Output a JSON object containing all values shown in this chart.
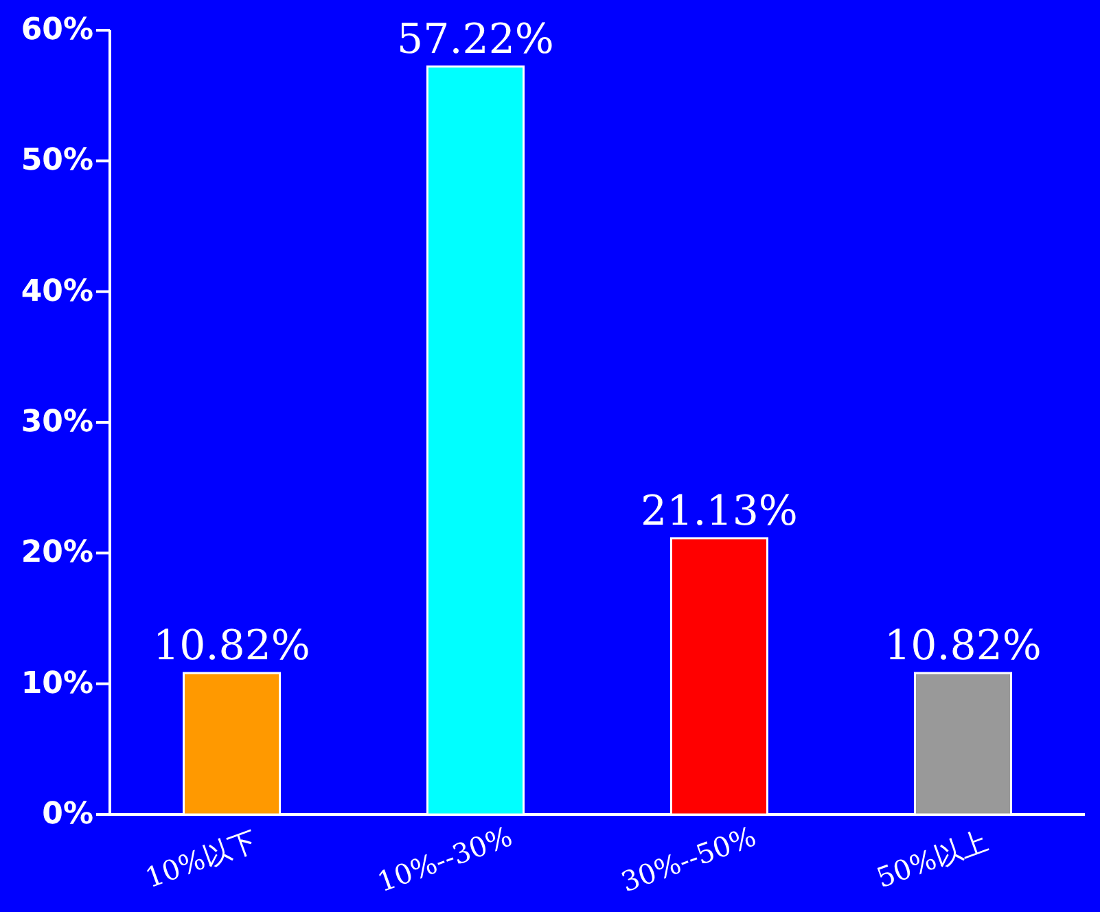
{
  "chart_data": {
    "type": "bar",
    "categories": [
      "10%以下",
      "10%--30%",
      "30%--50%",
      "50%以上"
    ],
    "values": [
      10.82,
      57.22,
      21.13,
      10.82
    ],
    "colors": [
      "#ff9900",
      "#00ffff",
      "#ff0000",
      "#999999"
    ],
    "value_labels": [
      "10.82%",
      "57.22%",
      "21.13%",
      "10.82%"
    ],
    "ylim": [
      0,
      60
    ],
    "yticks": [
      {
        "value": 0,
        "label": "0%"
      },
      {
        "value": 10,
        "label": "10%"
      },
      {
        "value": 20,
        "label": "20%"
      },
      {
        "value": 30,
        "label": "30%"
      },
      {
        "value": 40,
        "label": "40%"
      },
      {
        "value": 50,
        "label": "50%"
      },
      {
        "value": 60,
        "label": "60%"
      }
    ],
    "grid": false
  }
}
